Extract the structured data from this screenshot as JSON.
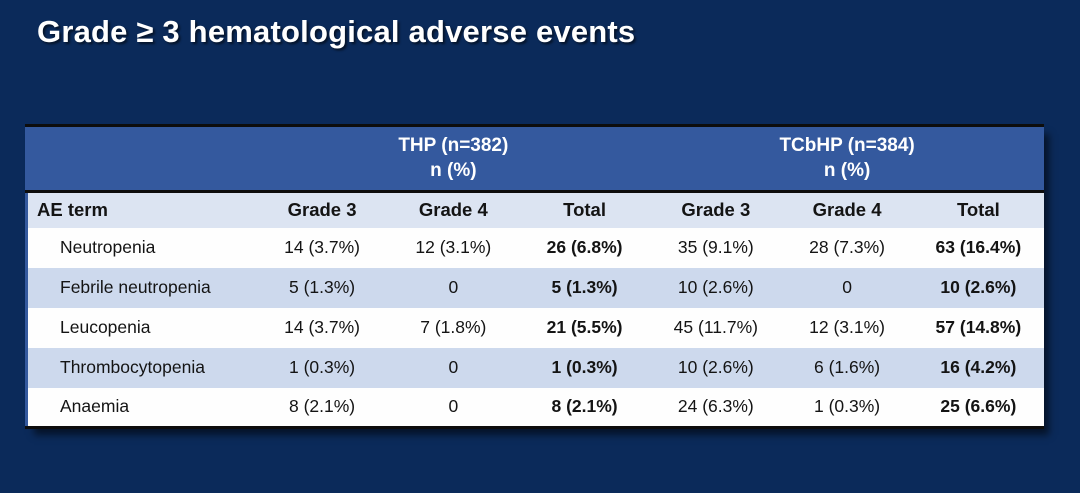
{
  "title": "Grade ≥ 3 hematological adverse events",
  "table": {
    "groups": [
      {
        "label": "THP (n=382)",
        "sub": "n (%)"
      },
      {
        "label": "TCbHP (n=384)",
        "sub": "n (%)"
      }
    ],
    "columns": [
      "AE term",
      "Grade 3",
      "Grade 4",
      "Total",
      "Grade 3",
      "Grade 4",
      "Total"
    ],
    "rows": [
      {
        "ae": "Neutropenia",
        "values": [
          "14 (3.7%)",
          "12 (3.1%)",
          "26 (6.8%)",
          "35 (9.1%)",
          "28 (7.3%)",
          "63 (16.4%)"
        ]
      },
      {
        "ae": "Febrile neutropenia",
        "values": [
          "5 (1.3%)",
          "0",
          "5 (1.3%)",
          "10 (2.6%)",
          "0",
          "10 (2.6%)"
        ]
      },
      {
        "ae": "Leucopenia",
        "values": [
          "14 (3.7%)",
          "7 (1.8%)",
          "21 (5.5%)",
          "45 (11.7%)",
          "12 (3.1%)",
          "57 (14.8%)"
        ]
      },
      {
        "ae": "Thrombocytopenia",
        "values": [
          "1 (0.3%)",
          "0",
          "1 (0.3%)",
          "10 (2.6%)",
          "6 (1.6%)",
          "16 (4.2%)"
        ]
      },
      {
        "ae": "Anaemia",
        "values": [
          "8 (2.1%)",
          "0",
          "8 (2.1%)",
          "24 (6.3%)",
          "1 (0.3%)",
          "25 (6.6%)"
        ]
      }
    ]
  },
  "colors": {
    "slide_bg": "#0b2a5a",
    "header_blue": "#34599e",
    "subheader_bg": "#dce4f2",
    "alt_row_bg": "#cdd9ed",
    "row_bg": "#fefefe",
    "border_dark": "#0d0d0d",
    "text_dark": "#141414",
    "text_light": "#ffffff"
  }
}
